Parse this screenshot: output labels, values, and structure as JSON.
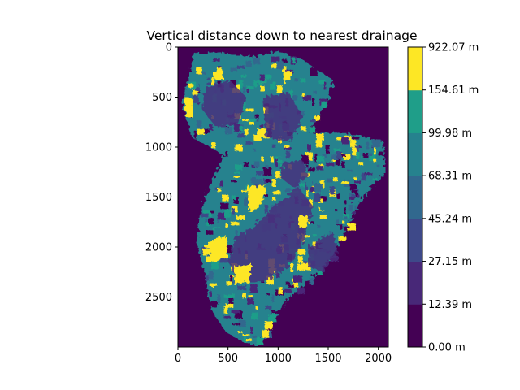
{
  "chart_data": {
    "type": "heatmap",
    "title": "Vertical distance down to nearest drainage",
    "xlabel": "",
    "ylabel": "",
    "xlim": [
      0,
      2100
    ],
    "ylim": [
      3000,
      0
    ],
    "x_ticks": [
      0,
      500,
      1000,
      1500,
      2000
    ],
    "y_ticks": [
      0,
      500,
      1000,
      1500,
      2000,
      2500
    ],
    "x_tick_labels": [
      "0",
      "500",
      "1000",
      "1500",
      "2000"
    ],
    "y_tick_labels": [
      "0",
      "500",
      "1000",
      "1500",
      "2000",
      "2500"
    ],
    "colorbar": {
      "boundaries": [
        0.0,
        12.39,
        27.15,
        45.24,
        68.31,
        99.98,
        154.61,
        922.07
      ],
      "labels": [
        "0.00 m",
        "12.39 m",
        "27.15 m",
        "45.24 m",
        "68.31 m",
        "99.98 m",
        "154.61 m",
        "922.07 m"
      ],
      "colors": [
        "#440154",
        "#46327e",
        "#365c8d",
        "#277f8e",
        "#1fa187",
        "#4ac16d",
        "#a0da39",
        "#fde725"
      ],
      "band_colors": [
        "#440154",
        "#482878",
        "#3e4989",
        "#31688e",
        "#26828e",
        "#1f9e89",
        "#fde725"
      ]
    },
    "background_color": "#440154",
    "grid": false
  }
}
